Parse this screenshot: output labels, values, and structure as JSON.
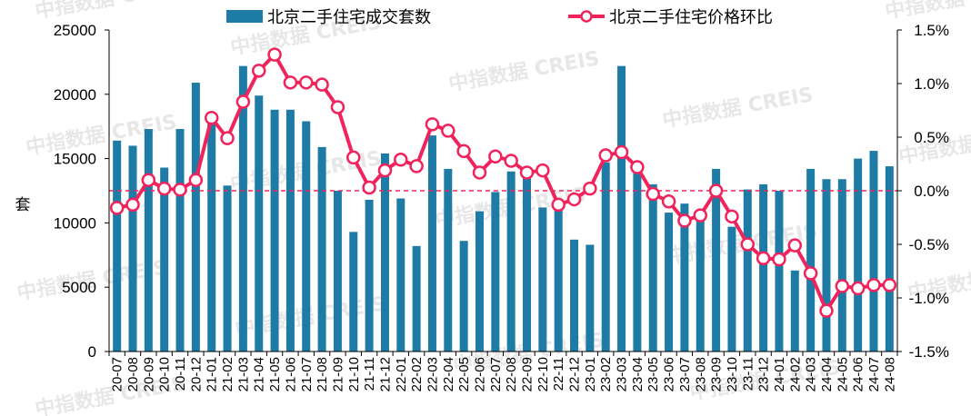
{
  "watermark": "中指数据 CREIS",
  "chart_data": {
    "type": "bar+line",
    "categories": [
      "20-07",
      "20-08",
      "20-09",
      "20-10",
      "20-11",
      "20-12",
      "21-01",
      "21-02",
      "21-03",
      "21-04",
      "21-05",
      "21-06",
      "21-07",
      "21-08",
      "21-09",
      "21-10",
      "21-11",
      "21-12",
      "22-01",
      "22-02",
      "22-03",
      "22-04",
      "22-05",
      "22-06",
      "22-07",
      "22-08",
      "22-09",
      "22-10",
      "22-11",
      "22-12",
      "23-01",
      "23-02",
      "23-03",
      "23-04",
      "23-05",
      "23-06",
      "23-07",
      "23-08",
      "23-09",
      "23-10",
      "23-11",
      "23-12",
      "24-01",
      "24-02",
      "24-03",
      "24-04",
      "24-05",
      "24-06",
      "24-07",
      "24-08"
    ],
    "series": [
      {
        "name": "北京二手住宅成交套数",
        "type": "bar",
        "axis": "left",
        "color": "#1e7ba6",
        "values": [
          16400,
          16000,
          17300,
          14300,
          17300,
          20900,
          17900,
          12900,
          22200,
          19900,
          18800,
          18800,
          17900,
          15900,
          12500,
          9300,
          11800,
          15400,
          11900,
          8200,
          16800,
          14200,
          8600,
          10900,
          12400,
          14000,
          13500,
          11200,
          11000,
          8700,
          8300,
          14700,
          22200,
          14500,
          13000,
          10800,
          11500,
          10300,
          14200,
          9700,
          12600,
          13000,
          12500,
          6300,
          14200,
          13400,
          13400,
          15000,
          15600,
          14400
        ]
      },
      {
        "name": "北京二手住宅价格环比",
        "type": "line",
        "axis": "right",
        "color": "#f0245c",
        "values": [
          -0.16,
          -0.13,
          0.1,
          0.02,
          0.01,
          0.1,
          0.68,
          0.49,
          0.83,
          1.12,
          1.27,
          1.01,
          1.01,
          0.99,
          0.78,
          0.31,
          0.03,
          0.19,
          0.29,
          0.23,
          0.62,
          0.56,
          0.37,
          0.17,
          0.32,
          0.28,
          0.17,
          0.19,
          -0.13,
          -0.08,
          0.02,
          0.33,
          0.36,
          0.22,
          -0.03,
          -0.1,
          -0.28,
          -0.23,
          0.0,
          -0.24,
          -0.5,
          -0.63,
          -0.64,
          -0.51,
          -0.77,
          -1.12,
          -0.89,
          -0.91,
          -0.88,
          -0.88
        ]
      }
    ],
    "y_left": {
      "label": "套",
      "ylim": [
        0,
        25000
      ],
      "ticks": [
        "0",
        "5000",
        "10000",
        "15000",
        "20000",
        "25000"
      ]
    },
    "y_right": {
      "ylim": [
        -1.5,
        1.5
      ],
      "ticks": [
        "-1.5%",
        "-1.0%",
        "-0.5%",
        "0.0%",
        "0.5%",
        "1.0%",
        "1.5%"
      ],
      "zero_line": "dashed"
    },
    "legend": "top-center",
    "grid": false
  }
}
